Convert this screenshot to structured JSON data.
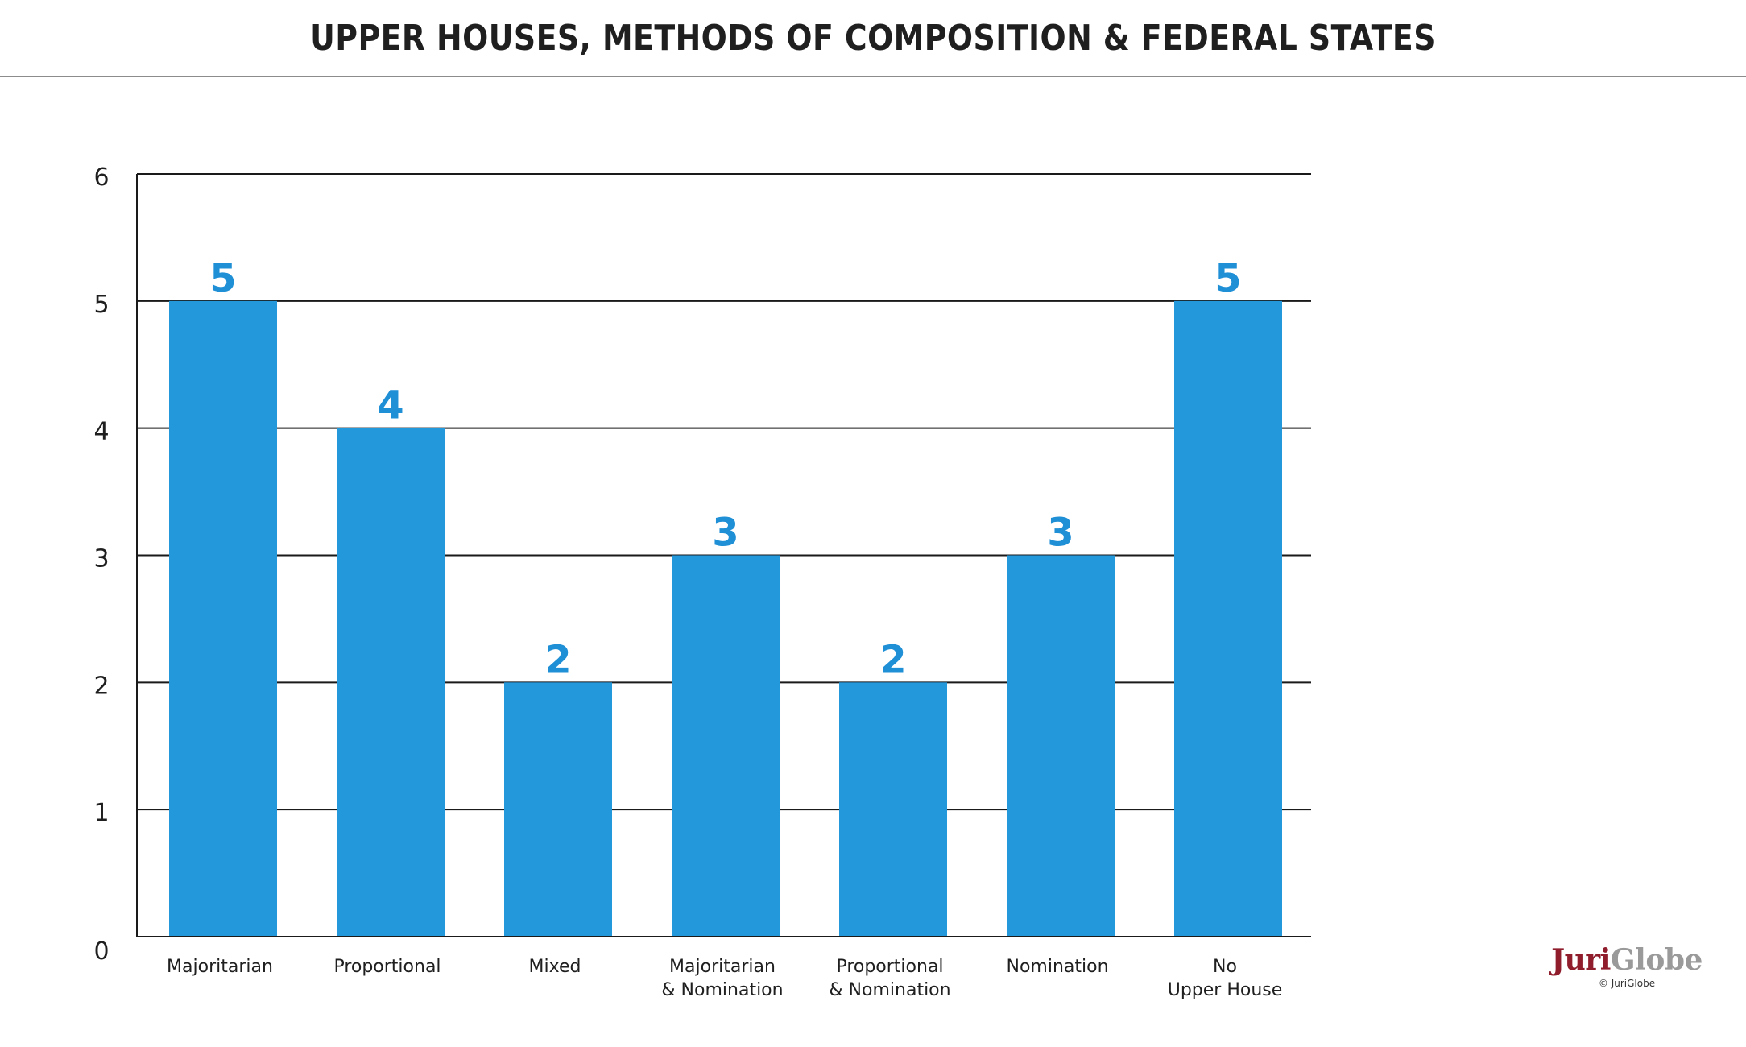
{
  "title": "UPPER HOUSES, METHODS OF COMPOSITION & FEDERAL STATES",
  "colors": {
    "bar": "#2399dc",
    "value_label": "#1f8fd6",
    "gridline": "#1a1a1a",
    "text": "#1f1f1f",
    "logo_primary": "#8f1d2c",
    "logo_secondary": "#9a9a9a"
  },
  "chart_data": {
    "type": "bar",
    "title": "UPPER HOUSES, METHODS OF COMPOSITION & FEDERAL STATES",
    "xlabel": "",
    "ylabel": "",
    "ylim": [
      0,
      6
    ],
    "yticks": [
      0,
      1,
      2,
      3,
      4,
      5,
      6
    ],
    "grid": true,
    "categories": [
      [
        "Majoritarian"
      ],
      [
        "Proportional"
      ],
      [
        "Mixed"
      ],
      [
        "Majoritarian",
        "& Nomination"
      ],
      [
        "Proportional",
        "& Nomination"
      ],
      [
        "Nomination"
      ],
      [
        "No",
        "Upper House"
      ]
    ],
    "values": [
      5,
      4,
      2,
      3,
      2,
      3,
      5
    ]
  },
  "logo": {
    "part1": "Juri",
    "part2": "Globe",
    "copyright": "© JuriGlobe"
  }
}
